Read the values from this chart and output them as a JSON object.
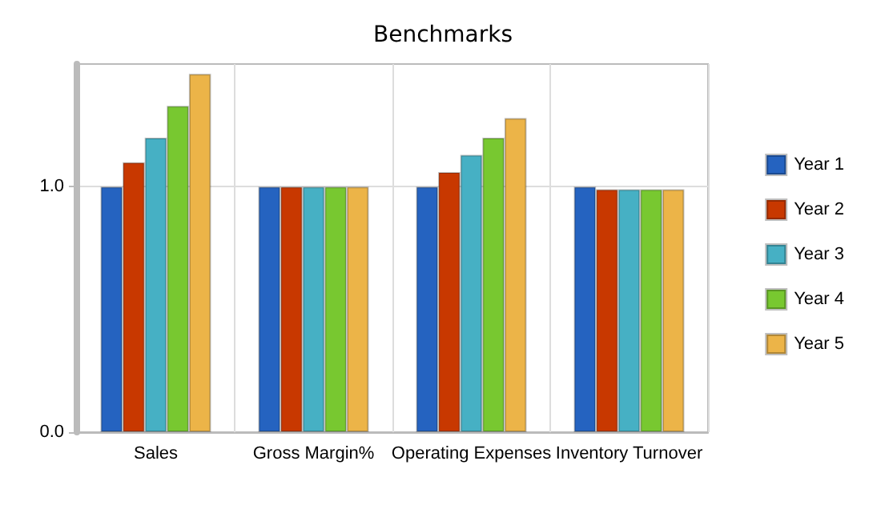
{
  "chart_data": {
    "type": "bar",
    "title": "Benchmarks",
    "categories": [
      "Sales",
      "Gross Margin%",
      "Operating Expenses",
      "Inventory Turnover"
    ],
    "series": [
      {
        "name": "Year 1",
        "color": "#2563c0",
        "values": [
          1.0,
          1.0,
          1.0,
          1.0
        ]
      },
      {
        "name": "Year 2",
        "color": "#c83800",
        "values": [
          1.1,
          1.0,
          1.06,
          0.99
        ]
      },
      {
        "name": "Year 3",
        "color": "#46b0c4",
        "values": [
          1.2,
          1.0,
          1.13,
          0.99
        ]
      },
      {
        "name": "Year 4",
        "color": "#78c830",
        "values": [
          1.33,
          1.0,
          1.2,
          0.99
        ]
      },
      {
        "name": "Year 5",
        "color": "#ecb448",
        "values": [
          1.46,
          1.0,
          1.28,
          0.99
        ]
      }
    ],
    "ylim": [
      0,
      1.5
    ],
    "yticks": [
      {
        "value": 0,
        "label": "0.0"
      },
      {
        "value": 1,
        "label": "1.0"
      }
    ],
    "grid": true,
    "legend": "right"
  }
}
